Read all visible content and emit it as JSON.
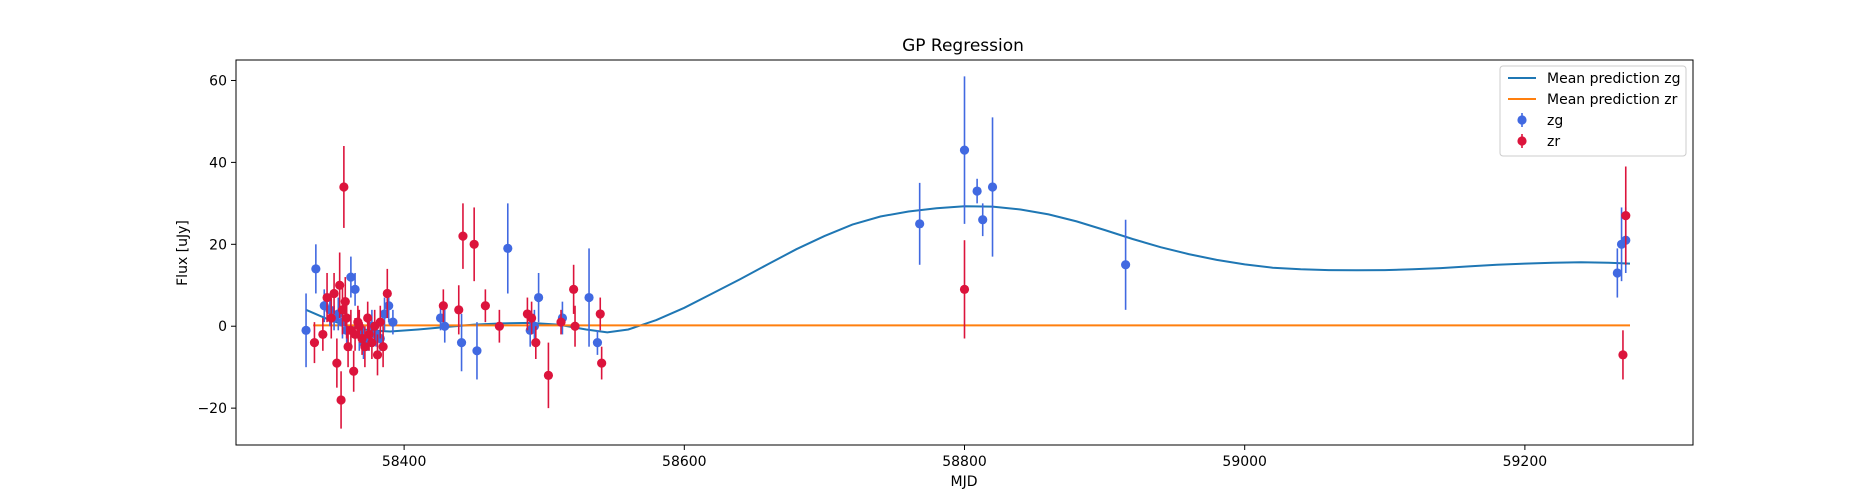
{
  "chart_data": {
    "type": "scatter",
    "title": "GP Regression",
    "xlabel": "MJD",
    "ylabel": "Flux [uJy]",
    "xlim": [
      58280,
      59320
    ],
    "ylim": [
      -29,
      65
    ],
    "xticks": [
      58400,
      58600,
      58800,
      59000,
      59200
    ],
    "yticks": [
      -20,
      0,
      20,
      40,
      60
    ],
    "grid": false,
    "legend_position": "top-right",
    "colors": {
      "mean_zg": "#1f77b4",
      "mean_zr": "#ff7f0e",
      "zg": "#4169e1",
      "zr": "#dc143c"
    },
    "legend": [
      {
        "label": "Mean prediction zg",
        "kind": "line",
        "color": "#1f77b4"
      },
      {
        "label": "Mean prediction zr",
        "kind": "line",
        "color": "#ff7f0e"
      },
      {
        "label": "zg",
        "kind": "errorbar",
        "color": "#4169e1"
      },
      {
        "label": "zr",
        "kind": "errorbar",
        "color": "#dc143c"
      }
    ],
    "series": [
      {
        "name": "Mean prediction zg",
        "kind": "line",
        "color": "#1f77b4",
        "points": [
          [
            58330,
            4.0
          ],
          [
            58345,
            1.8
          ],
          [
            58360,
            0.0
          ],
          [
            58375,
            -1.0
          ],
          [
            58390,
            -1.3
          ],
          [
            58410,
            -0.8
          ],
          [
            58430,
            -0.2
          ],
          [
            58450,
            0.4
          ],
          [
            58470,
            0.7
          ],
          [
            58490,
            0.8
          ],
          [
            58510,
            0.4
          ],
          [
            58530,
            -0.8
          ],
          [
            58545,
            -1.5
          ],
          [
            58560,
            -0.8
          ],
          [
            58580,
            1.5
          ],
          [
            58600,
            4.5
          ],
          [
            58620,
            8.0
          ],
          [
            58640,
            11.5
          ],
          [
            58660,
            15.2
          ],
          [
            58680,
            18.8
          ],
          [
            58700,
            22.0
          ],
          [
            58720,
            24.8
          ],
          [
            58740,
            26.8
          ],
          [
            58760,
            28.0
          ],
          [
            58780,
            28.8
          ],
          [
            58800,
            29.3
          ],
          [
            58820,
            29.2
          ],
          [
            58840,
            28.5
          ],
          [
            58860,
            27.3
          ],
          [
            58880,
            25.6
          ],
          [
            58900,
            23.5
          ],
          [
            58920,
            21.3
          ],
          [
            58940,
            19.3
          ],
          [
            58960,
            17.6
          ],
          [
            58980,
            16.2
          ],
          [
            59000,
            15.1
          ],
          [
            59020,
            14.3
          ],
          [
            59040,
            13.9
          ],
          [
            59060,
            13.7
          ],
          [
            59080,
            13.65
          ],
          [
            59100,
            13.7
          ],
          [
            59120,
            13.9
          ],
          [
            59140,
            14.2
          ],
          [
            59160,
            14.6
          ],
          [
            59180,
            15.0
          ],
          [
            59200,
            15.3
          ],
          [
            59220,
            15.5
          ],
          [
            59240,
            15.6
          ],
          [
            59260,
            15.5
          ],
          [
            59275,
            15.3
          ]
        ]
      },
      {
        "name": "Mean prediction zr",
        "kind": "line",
        "color": "#ff7f0e",
        "points": [
          [
            58335,
            0.2
          ],
          [
            59275,
            0.2
          ]
        ]
      },
      {
        "name": "zg",
        "kind": "errorbar",
        "color": "#4169e1",
        "points": [
          [
            58330,
            -1,
            9
          ],
          [
            58337,
            14,
            6
          ],
          [
            58343,
            5,
            4
          ],
          [
            58347,
            4,
            4
          ],
          [
            58350,
            2,
            3
          ],
          [
            58353,
            3,
            4
          ],
          [
            58356,
            1,
            4
          ],
          [
            58359,
            -1,
            3
          ],
          [
            58362,
            12,
            5
          ],
          [
            58365,
            9,
            4
          ],
          [
            58368,
            -2,
            4
          ],
          [
            58371,
            -4,
            4
          ],
          [
            58374,
            -3,
            3
          ],
          [
            58377,
            0,
            4
          ],
          [
            58380,
            -2,
            3
          ],
          [
            58383,
            -3,
            3
          ],
          [
            58386,
            3,
            4
          ],
          [
            58389,
            5,
            4
          ],
          [
            58392,
            1,
            3
          ],
          [
            58426,
            2,
            3
          ],
          [
            58429,
            0,
            4
          ],
          [
            58441,
            -4,
            7
          ],
          [
            58452,
            -6,
            7
          ],
          [
            58474,
            19,
            11
          ],
          [
            58490,
            -1,
            4
          ],
          [
            58493,
            0,
            4
          ],
          [
            58496,
            7,
            6
          ],
          [
            58513,
            2,
            4
          ],
          [
            58532,
            7,
            12
          ],
          [
            58538,
            -4,
            3
          ],
          [
            58768,
            25,
            10
          ],
          [
            58800,
            43,
            18
          ],
          [
            58809,
            33,
            3
          ],
          [
            58813,
            26,
            4
          ],
          [
            58820,
            34,
            17
          ],
          [
            58915,
            15,
            11
          ],
          [
            59266,
            13,
            6
          ],
          [
            59269,
            20,
            9
          ],
          [
            59272,
            21,
            8
          ]
        ]
      },
      {
        "name": "zr",
        "kind": "errorbar",
        "color": "#dc143c",
        "points": [
          [
            58336,
            -4,
            5
          ],
          [
            58342,
            -2,
            4
          ],
          [
            58345,
            7,
            6
          ],
          [
            58348,
            2,
            5
          ],
          [
            58350,
            8,
            5
          ],
          [
            58352,
            -9,
            6
          ],
          [
            58354,
            10,
            8
          ],
          [
            58355,
            -18,
            7
          ],
          [
            58356,
            4,
            6
          ],
          [
            58357,
            34,
            10
          ],
          [
            58358,
            6,
            6
          ],
          [
            58359,
            2,
            5
          ],
          [
            58360,
            -5,
            5
          ],
          [
            58362,
            -1,
            5
          ],
          [
            58364,
            -11,
            5
          ],
          [
            58365,
            -2,
            4
          ],
          [
            58367,
            1,
            4
          ],
          [
            58368,
            0,
            4
          ],
          [
            58370,
            -3,
            4
          ],
          [
            58372,
            -5,
            5
          ],
          [
            58374,
            2,
            4
          ],
          [
            58375,
            -2,
            4
          ],
          [
            58377,
            -4,
            4
          ],
          [
            58379,
            0,
            4
          ],
          [
            58381,
            -7,
            5
          ],
          [
            58383,
            1,
            4
          ],
          [
            58385,
            -5,
            5
          ],
          [
            58388,
            8,
            6
          ],
          [
            58428,
            5,
            4
          ],
          [
            58439,
            4,
            6
          ],
          [
            58442,
            22,
            8
          ],
          [
            58450,
            20,
            9
          ],
          [
            58458,
            5,
            4
          ],
          [
            58468,
            0,
            4
          ],
          [
            58488,
            3,
            4
          ],
          [
            58491,
            2,
            4
          ],
          [
            58494,
            -4,
            4
          ],
          [
            58503,
            -12,
            8
          ],
          [
            58512,
            1,
            3
          ],
          [
            58521,
            9,
            6
          ],
          [
            58522,
            0,
            5
          ],
          [
            58540,
            3,
            4
          ],
          [
            58541,
            -9,
            4
          ],
          [
            58800,
            9,
            12
          ],
          [
            59270,
            -7,
            6
          ],
          [
            59272,
            27,
            12
          ]
        ]
      }
    ]
  }
}
